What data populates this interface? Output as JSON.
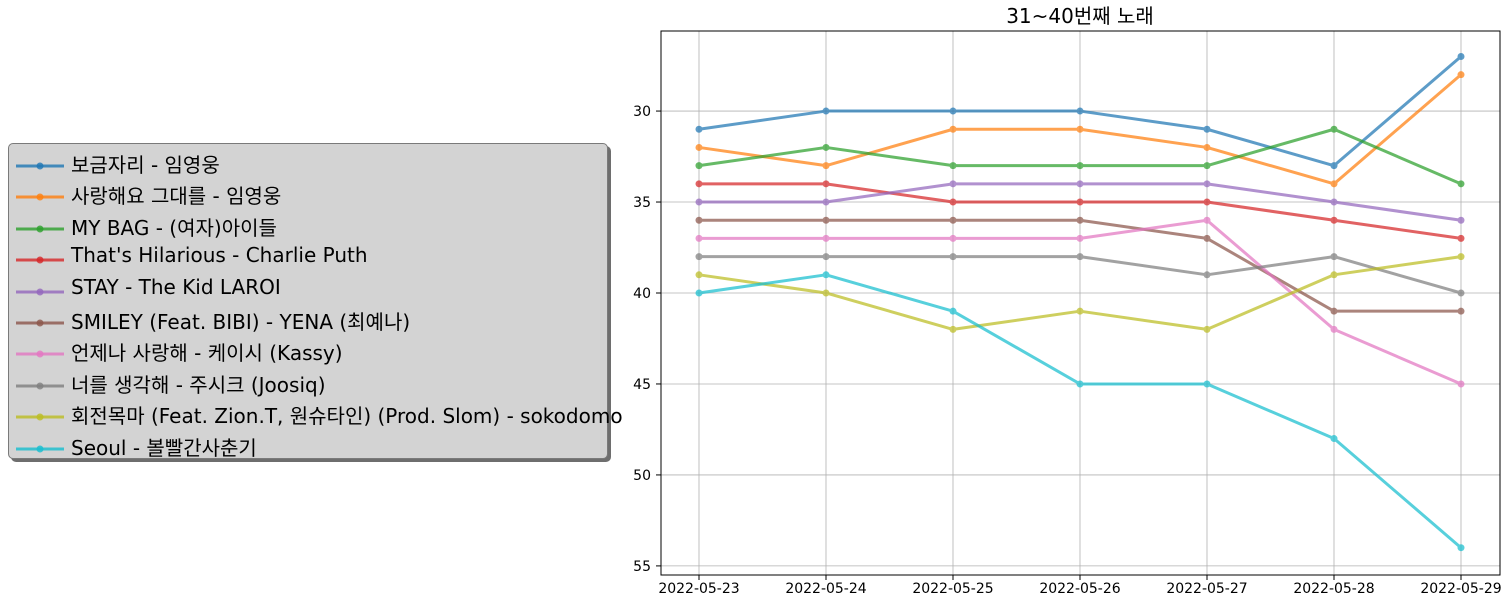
{
  "chart_data": {
    "type": "line",
    "title": "31~40번째 노래",
    "xlabel": "",
    "ylabel": "",
    "y_inverted": true,
    "ylim": [
      55.5,
      25.6
    ],
    "yticks": [
      30,
      35,
      40,
      45,
      50,
      55
    ],
    "grid": true,
    "legend_position": "left",
    "categories": [
      "2022-05-23",
      "2022-05-24",
      "2022-05-25",
      "2022-05-26",
      "2022-05-27",
      "2022-05-28",
      "2022-05-29"
    ],
    "series": [
      {
        "name": "보금자리 - 임영웅",
        "color": "#1f77b4",
        "values": [
          31,
          30,
          30,
          30,
          31,
          33,
          27
        ]
      },
      {
        "name": "사랑해요 그대를 - 임영웅",
        "color": "#ff7f0e",
        "values": [
          32,
          33,
          31,
          31,
          32,
          34,
          28
        ]
      },
      {
        "name": "MY BAG - (여자)아이들",
        "color": "#2ca02c",
        "values": [
          33,
          32,
          33,
          33,
          33,
          31,
          34
        ]
      },
      {
        "name": "That's Hilarious - Charlie Puth",
        "color": "#d62728",
        "values": [
          34,
          34,
          35,
          35,
          35,
          36,
          37
        ]
      },
      {
        "name": "STAY - The Kid LAROI",
        "color": "#9467bd",
        "values": [
          35,
          35,
          34,
          34,
          34,
          35,
          36
        ]
      },
      {
        "name": "SMILEY (Feat. BIBI) - YENA (최예나)",
        "color": "#8c564b",
        "values": [
          36,
          36,
          36,
          36,
          37,
          41,
          41
        ]
      },
      {
        "name": "언제나 사랑해 - 케이시 (Kassy)",
        "color": "#e377c2",
        "values": [
          37,
          37,
          37,
          37,
          36,
          42,
          45
        ]
      },
      {
        "name": "너를 생각해 - 주시크 (Joosiq)",
        "color": "#7f7f7f",
        "values": [
          38,
          38,
          38,
          38,
          39,
          38,
          40
        ]
      },
      {
        "name": "회전목마 (Feat. Zion.T, 원슈타인) (Prod. Slom) - sokodomo",
        "color": "#bcbd22",
        "values": [
          39,
          40,
          42,
          41,
          42,
          39,
          38
        ]
      },
      {
        "name": "Seoul - 볼빨간사춘기",
        "color": "#17becf",
        "values": [
          40,
          39,
          41,
          45,
          45,
          48,
          54
        ]
      }
    ]
  }
}
